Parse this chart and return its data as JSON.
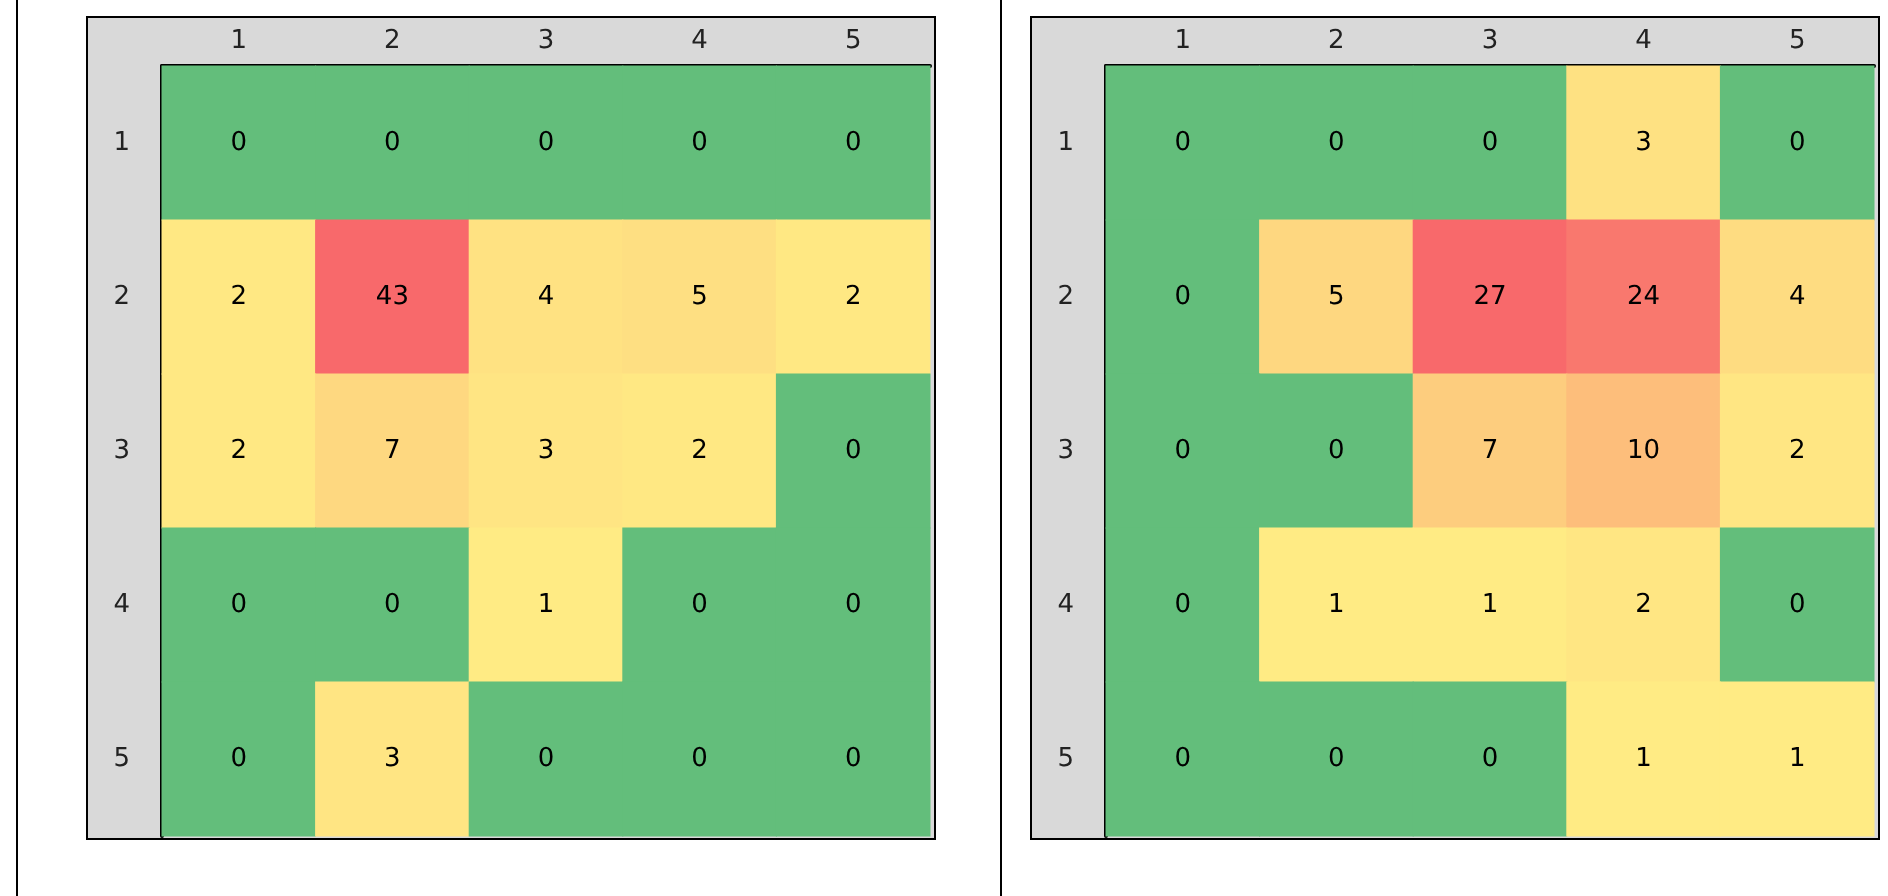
{
  "chart_data": [
    {
      "type": "heatmap",
      "data_labels": true,
      "categories": [
        "1",
        "2",
        "3",
        "4",
        "5"
      ],
      "y_categories": [
        "1",
        "2",
        "3",
        "4",
        "5"
      ],
      "colors": [
        "#63be7b",
        "#ffeb84",
        "#f8696b"
      ],
      "cells": [
        [
          0,
          0,
          0,
          0,
          0
        ],
        [
          2,
          43,
          4,
          5,
          2
        ],
        [
          2,
          7,
          3,
          2,
          0
        ],
        [
          0,
          0,
          1,
          0,
          0
        ],
        [
          0,
          3,
          0,
          0,
          0
        ]
      ]
    },
    {
      "type": "heatmap",
      "data_labels": true,
      "categories": [
        "1",
        "2",
        "3",
        "4",
        "5"
      ],
      "y_categories": [
        "1",
        "2",
        "3",
        "4",
        "5"
      ],
      "colors": [
        "#63be7b",
        "#ffeb84",
        "#f8696b"
      ],
      "cells": [
        [
          0,
          0,
          0,
          3,
          0
        ],
        [
          0,
          5,
          27,
          24,
          4
        ],
        [
          0,
          0,
          7,
          10,
          2
        ],
        [
          0,
          1,
          1,
          2,
          0
        ],
        [
          0,
          0,
          0,
          1,
          1
        ]
      ]
    }
  ]
}
